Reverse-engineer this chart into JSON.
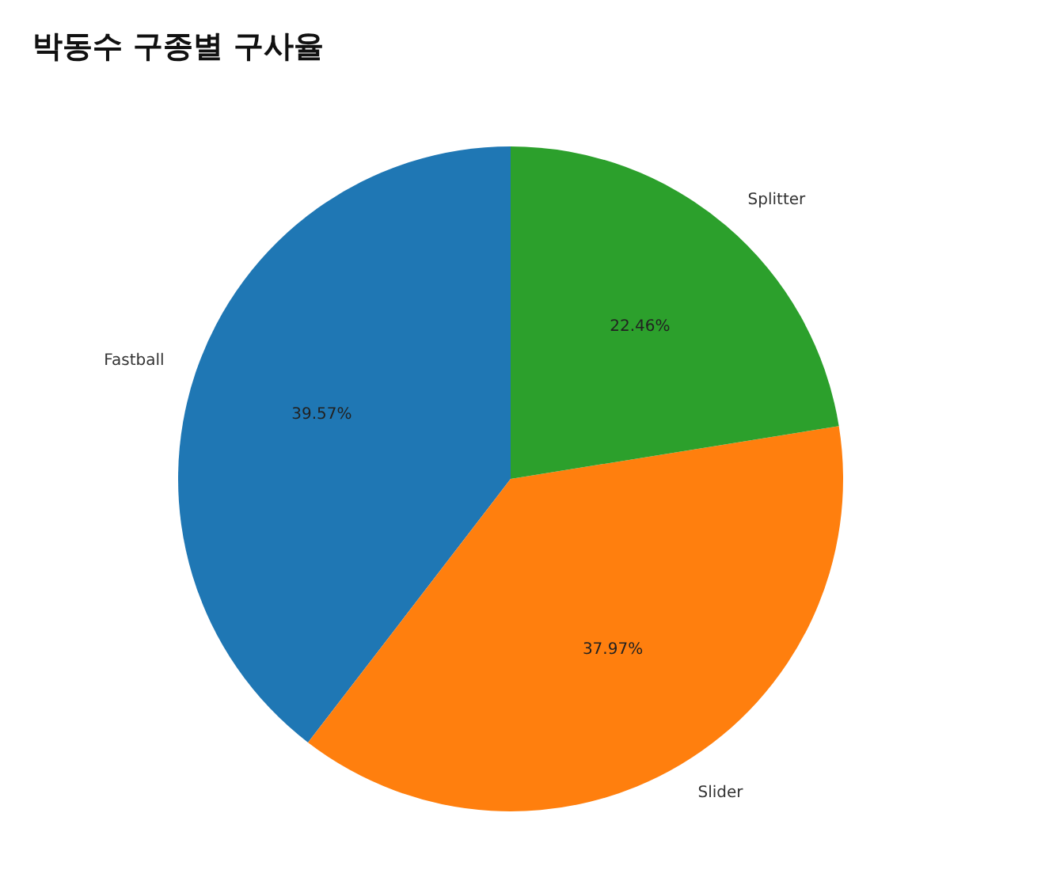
{
  "chart_data": {
    "type": "pie",
    "title": "박동수 구종별 구사율",
    "categories": [
      "Fastball",
      "Slider",
      "Splitter"
    ],
    "values": [
      39.57,
      37.97,
      22.46
    ],
    "colors": [
      "#1f77b4",
      "#ff7f0e",
      "#2ca02c"
    ],
    "value_labels": [
      "39.57%",
      "37.97%",
      "22.46%"
    ]
  }
}
